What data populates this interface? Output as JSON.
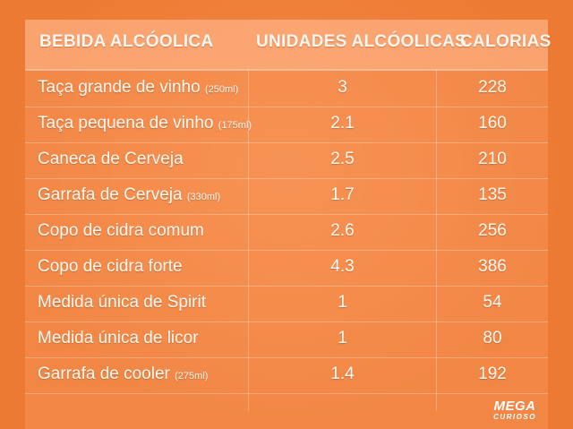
{
  "table": {
    "headers": [
      "BEBIDA ALCÓOLICA",
      "UNIDADES ALCÓOLICAS",
      "CALORIAS"
    ],
    "rows": [
      {
        "name": "Taça grande de vinho",
        "note": "(250ml)",
        "units": "3",
        "calories": "228"
      },
      {
        "name": "Taça pequena de vinho",
        "note": "(175ml)",
        "units": "2.1",
        "calories": "160"
      },
      {
        "name": "Caneca de Cerveja",
        "note": "",
        "units": "2.5",
        "calories": "210"
      },
      {
        "name": "Garrafa de Cerveja",
        "note": "(330ml)",
        "units": "1.7",
        "calories": "135"
      },
      {
        "name": "Copo de cidra comum",
        "note": "",
        "units": "2.6",
        "calories": "256"
      },
      {
        "name": "Copo de cidra forte",
        "note": "",
        "units": "4.3",
        "calories": "386"
      },
      {
        "name": "Medida única de Spirit",
        "note": "",
        "units": "1",
        "calories": "54"
      },
      {
        "name": "Medida única de licor",
        "note": "",
        "units": "1",
        "calories": "80"
      },
      {
        "name": "Garrafa de cooler",
        "note": "(275ml)",
        "units": "1.4",
        "calories": "192"
      }
    ]
  },
  "logo": {
    "line1": "MEGA",
    "line2": "CURIOSO"
  },
  "colors": {
    "background": "#ed7a32",
    "text": "#fffaf4"
  }
}
